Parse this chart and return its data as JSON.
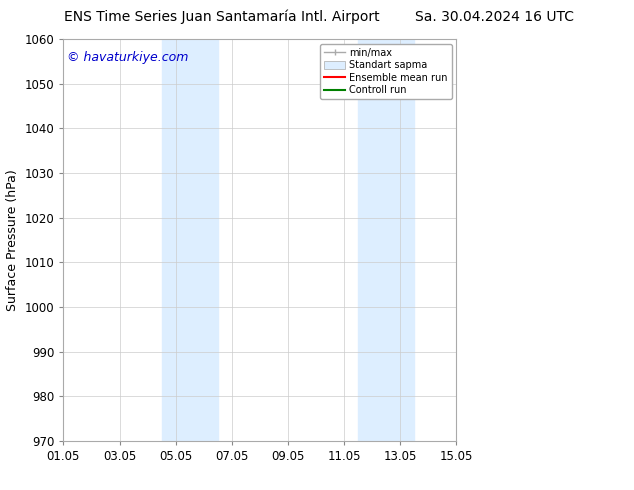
{
  "title_left": "ENS Time Series Juan Santamaría Intl. Airport",
  "title_right": "Sa. 30.04.2024 16 UTC",
  "ylabel": "Surface Pressure (hPa)",
  "watermark": "© havaturkiye.com",
  "ylim": [
    970,
    1060
  ],
  "yticks": [
    970,
    980,
    990,
    1000,
    1010,
    1020,
    1030,
    1040,
    1050,
    1060
  ],
  "xtick_labels": [
    "01.05",
    "03.05",
    "05.05",
    "07.05",
    "09.05",
    "11.05",
    "13.05",
    "15.05"
  ],
  "xtick_positions": [
    0,
    2,
    4,
    6,
    8,
    10,
    12,
    14
  ],
  "xlim": [
    0,
    14
  ],
  "shaded_regions": [
    {
      "xmin": 3.5,
      "xmax": 5.5,
      "color": "#ddeeff"
    },
    {
      "xmin": 10.5,
      "xmax": 12.5,
      "color": "#ddeeff"
    }
  ],
  "legend_entries": [
    {
      "label": "min/max",
      "color": "#aaaaaa",
      "style": "line_with_caps"
    },
    {
      "label": "Standart sapma",
      "color": "#ddeeff",
      "style": "filled_box"
    },
    {
      "label": "Ensemble mean run",
      "color": "#ff0000",
      "style": "line"
    },
    {
      "label": "Controll run",
      "color": "#008000",
      "style": "line"
    }
  ],
  "watermark_color": "#0000cc",
  "background_color": "#ffffff",
  "grid_color": "#cccccc",
  "title_fontsize": 10,
  "axis_fontsize": 9,
  "tick_fontsize": 8.5,
  "watermark_fontsize": 9
}
